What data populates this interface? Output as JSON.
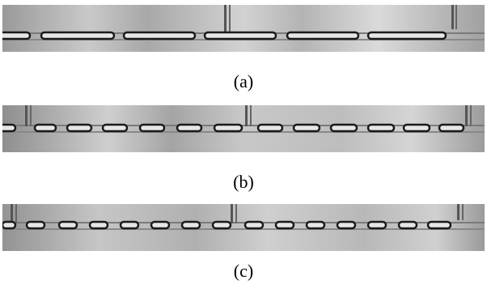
{
  "figure": {
    "panels": [
      {
        "label": "(a)",
        "image": "microchannel-droplet-train-long-plugs"
      },
      {
        "label": "(b)",
        "image": "microchannel-droplet-train-medium-plugs"
      },
      {
        "label": "(c)",
        "image": "microchannel-droplet-train-short-plugs"
      }
    ]
  }
}
